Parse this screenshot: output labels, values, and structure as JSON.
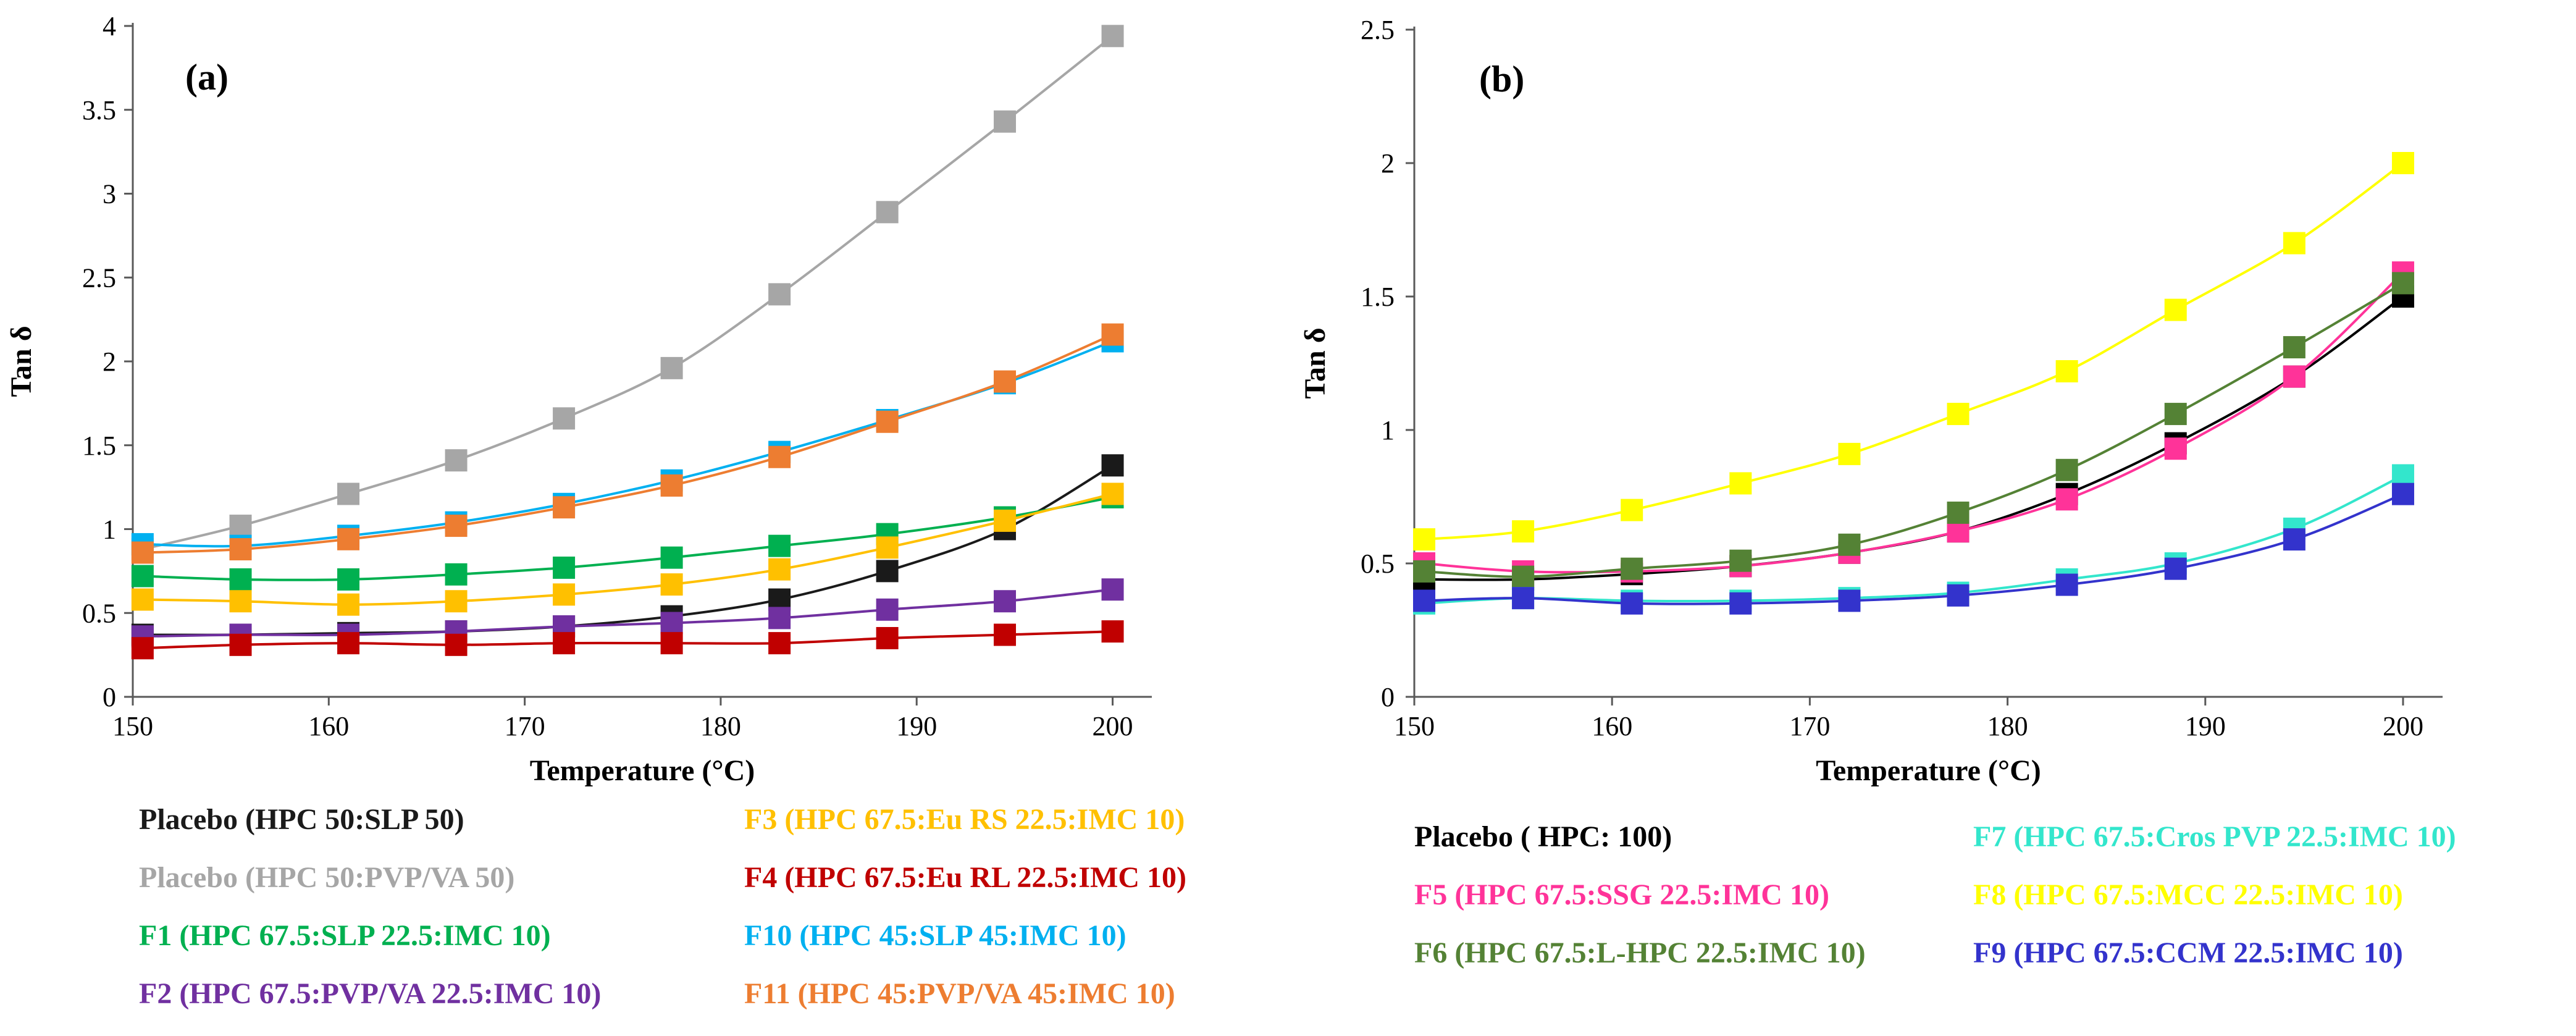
{
  "chart_data": [
    {
      "type": "line",
      "panel_label": "(a)",
      "xlabel": "Temperature (°C)",
      "ylabel": "Tan δ",
      "xlim": [
        150,
        202
      ],
      "ylim": [
        0,
        4
      ],
      "xticks": [
        150,
        160,
        170,
        180,
        190,
        200
      ],
      "yticks": [
        0,
        0.5,
        1,
        1.5,
        2,
        2.5,
        3,
        3.5,
        4
      ],
      "ytick_labels": [
        "0",
        "0.5",
        "1",
        "1.5",
        "2",
        "2.5",
        "3",
        "3.5",
        "4"
      ],
      "grid": false,
      "legend_position": "below",
      "x": [
        150.5,
        155.5,
        161,
        166.5,
        172,
        177.5,
        183,
        188.5,
        194.5,
        200
      ],
      "series": [
        {
          "name": "Placebo (HPC 50:SLP 50)",
          "color": "#1a1a1a",
          "values": [
            0.37,
            0.37,
            0.38,
            0.39,
            0.42,
            0.48,
            0.58,
            0.75,
            1.0,
            1.38
          ]
        },
        {
          "name": "Placebo (HPC 50:PVP/VA 50)",
          "color": "#a6a6a6",
          "values": [
            0.88,
            1.02,
            1.21,
            1.41,
            1.66,
            1.96,
            2.4,
            2.89,
            3.43,
            3.94
          ]
        },
        {
          "name": "F1 (HPC 67.5:SLP 22.5:IMC 10)",
          "color": "#00b050",
          "values": [
            0.72,
            0.7,
            0.7,
            0.73,
            0.77,
            0.83,
            0.9,
            0.97,
            1.07,
            1.19
          ]
        },
        {
          "name": "F2 (HPC 67.5:PVP/VA 22.5:IMC 10)",
          "color": "#7030a0",
          "values": [
            0.36,
            0.37,
            0.37,
            0.39,
            0.42,
            0.44,
            0.47,
            0.52,
            0.57,
            0.64
          ]
        },
        {
          "name": "F3 (HPC 67.5:Eu RS 22.5:IMC 10)",
          "color": "#ffc000",
          "values": [
            0.58,
            0.57,
            0.55,
            0.57,
            0.61,
            0.67,
            0.76,
            0.89,
            1.05,
            1.21
          ]
        },
        {
          "name": "F4 (HPC 67.5:Eu RL 22.5:IMC 10)",
          "color": "#c00000",
          "values": [
            0.29,
            0.31,
            0.32,
            0.31,
            0.32,
            0.32,
            0.32,
            0.35,
            0.37,
            0.39
          ]
        },
        {
          "name": "F10 (HPC 45:SLP 45:IMC 10)",
          "color": "#00b0f0",
          "values": [
            0.91,
            0.9,
            0.96,
            1.04,
            1.15,
            1.29,
            1.46,
            1.65,
            1.87,
            2.12
          ]
        },
        {
          "name": "F11 (HPC 45:PVP/VA 45:IMC 10)",
          "color": "#ed7d31",
          "values": [
            0.86,
            0.88,
            0.94,
            1.02,
            1.13,
            1.26,
            1.43,
            1.64,
            1.88,
            2.16
          ]
        }
      ]
    },
    {
      "type": "line",
      "panel_label": "(b)",
      "xlabel": "Temperature (°C)",
      "ylabel": "Tan δ",
      "xlim": [
        150,
        202
      ],
      "ylim": [
        0,
        2.5
      ],
      "xticks": [
        150,
        160,
        170,
        180,
        190,
        200
      ],
      "yticks": [
        0,
        0.5,
        1,
        1.5,
        2,
        2.5
      ],
      "ytick_labels": [
        "0",
        "0.5",
        "1",
        "1.5",
        "2",
        "2.5"
      ],
      "grid": false,
      "legend_position": "below",
      "x": [
        150.5,
        155.5,
        161,
        166.5,
        172,
        177.5,
        183,
        188.5,
        194.5,
        200
      ],
      "series": [
        {
          "name": "Placebo ( HPC: 100)",
          "color": "#000000",
          "values": [
            0.44,
            0.44,
            0.46,
            0.49,
            0.54,
            0.62,
            0.76,
            0.95,
            1.2,
            1.5
          ]
        },
        {
          "name": "F5  (HPC 67.5:SSG 22.5:IMC 10)",
          "color": "#ff3399",
          "values": [
            0.5,
            0.47,
            0.47,
            0.49,
            0.54,
            0.62,
            0.74,
            0.93,
            1.2,
            1.59
          ]
        },
        {
          "name": "F6  (HPC 67.5:L-HPC 22.5:IMC 10)",
          "color": "#548235",
          "values": [
            0.47,
            0.45,
            0.48,
            0.51,
            0.57,
            0.69,
            0.85,
            1.06,
            1.31,
            1.55
          ]
        },
        {
          "name": "F7 (HPC 67.5:Cros PVP 22.5:IMC 10)",
          "color": "#33e6cc",
          "values": [
            0.35,
            0.37,
            0.36,
            0.36,
            0.37,
            0.39,
            0.44,
            0.5,
            0.63,
            0.83
          ]
        },
        {
          "name": "F8 (HPC 67.5:MCC 22.5:IMC 10)",
          "color": "#ffff00",
          "values": [
            0.59,
            0.62,
            0.7,
            0.8,
            0.91,
            1.06,
            1.22,
            1.45,
            1.7,
            2.0
          ]
        },
        {
          "name": "F9 (HPC 67.5:CCM 22.5:IMC 10)",
          "color": "#3333cc",
          "values": [
            0.36,
            0.37,
            0.35,
            0.35,
            0.36,
            0.38,
            0.42,
            0.48,
            0.59,
            0.76
          ]
        }
      ]
    }
  ]
}
